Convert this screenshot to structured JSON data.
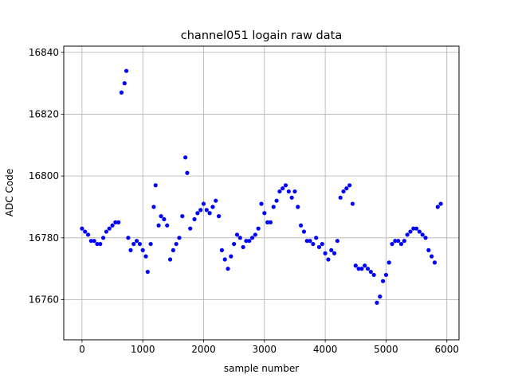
{
  "chart_data": {
    "type": "scatter",
    "title": "channel051 logain raw data",
    "xlabel": "sample number",
    "ylabel": "ADC Code",
    "xlim": [
      -300,
      6200
    ],
    "ylim": [
      16747,
      16842
    ],
    "x_ticks": [
      0,
      1000,
      2000,
      3000,
      4000,
      5000,
      6000
    ],
    "y_ticks": [
      16760,
      16780,
      16800,
      16820,
      16840
    ],
    "grid": true,
    "marker_color": "#0000ff",
    "series": [
      {
        "points": [
          [
            0,
            16783
          ],
          [
            50,
            16782
          ],
          [
            100,
            16781
          ],
          [
            150,
            16779
          ],
          [
            200,
            16779
          ],
          [
            250,
            16778
          ],
          [
            300,
            16778
          ],
          [
            350,
            16780
          ],
          [
            400,
            16782
          ],
          [
            450,
            16783
          ],
          [
            500,
            16784
          ],
          [
            550,
            16785
          ],
          [
            600,
            16785
          ],
          [
            650,
            16827
          ],
          [
            700,
            16830
          ],
          [
            730,
            16834
          ],
          [
            760,
            16780
          ],
          [
            800,
            16776
          ],
          [
            850,
            16778
          ],
          [
            900,
            16779
          ],
          [
            950,
            16778
          ],
          [
            1000,
            16776
          ],
          [
            1050,
            16774
          ],
          [
            1080,
            16769
          ],
          [
            1130,
            16778
          ],
          [
            1180,
            16790
          ],
          [
            1210,
            16797
          ],
          [
            1260,
            16784
          ],
          [
            1300,
            16787
          ],
          [
            1350,
            16786
          ],
          [
            1400,
            16784
          ],
          [
            1450,
            16773
          ],
          [
            1500,
            16776
          ],
          [
            1550,
            16778
          ],
          [
            1600,
            16780
          ],
          [
            1650,
            16787
          ],
          [
            1700,
            16806
          ],
          [
            1730,
            16801
          ],
          [
            1780,
            16783
          ],
          [
            1850,
            16786
          ],
          [
            1900,
            16788
          ],
          [
            1950,
            16789
          ],
          [
            2000,
            16791
          ],
          [
            2050,
            16789
          ],
          [
            2100,
            16788
          ],
          [
            2150,
            16790
          ],
          [
            2200,
            16792
          ],
          [
            2250,
            16787
          ],
          [
            2300,
            16776
          ],
          [
            2350,
            16773
          ],
          [
            2400,
            16770
          ],
          [
            2450,
            16774
          ],
          [
            2500,
            16778
          ],
          [
            2550,
            16781
          ],
          [
            2600,
            16780
          ],
          [
            2650,
            16777
          ],
          [
            2700,
            16779
          ],
          [
            2750,
            16779
          ],
          [
            2800,
            16780
          ],
          [
            2850,
            16781
          ],
          [
            2900,
            16783
          ],
          [
            2950,
            16791
          ],
          [
            3000,
            16788
          ],
          [
            3050,
            16785
          ],
          [
            3100,
            16785
          ],
          [
            3150,
            16790
          ],
          [
            3200,
            16792
          ],
          [
            3250,
            16795
          ],
          [
            3300,
            16796
          ],
          [
            3350,
            16797
          ],
          [
            3400,
            16795
          ],
          [
            3450,
            16793
          ],
          [
            3500,
            16795
          ],
          [
            3550,
            16790
          ],
          [
            3600,
            16784
          ],
          [
            3650,
            16782
          ],
          [
            3700,
            16779
          ],
          [
            3750,
            16779
          ],
          [
            3800,
            16778
          ],
          [
            3850,
            16780
          ],
          [
            3900,
            16777
          ],
          [
            3950,
            16778
          ],
          [
            4000,
            16775
          ],
          [
            4050,
            16773
          ],
          [
            4100,
            16776
          ],
          [
            4150,
            16775
          ],
          [
            4200,
            16779
          ],
          [
            4250,
            16793
          ],
          [
            4300,
            16795
          ],
          [
            4350,
            16796
          ],
          [
            4400,
            16797
          ],
          [
            4450,
            16791
          ],
          [
            4500,
            16771
          ],
          [
            4550,
            16770
          ],
          [
            4600,
            16770
          ],
          [
            4650,
            16771
          ],
          [
            4700,
            16770
          ],
          [
            4750,
            16769
          ],
          [
            4800,
            16768
          ],
          [
            4850,
            16759
          ],
          [
            4900,
            16761
          ],
          [
            4950,
            16766
          ],
          [
            5000,
            16768
          ],
          [
            5050,
            16772
          ],
          [
            5100,
            16778
          ],
          [
            5150,
            16779
          ],
          [
            5200,
            16779
          ],
          [
            5250,
            16778
          ],
          [
            5300,
            16779
          ],
          [
            5350,
            16781
          ],
          [
            5400,
            16782
          ],
          [
            5450,
            16783
          ],
          [
            5500,
            16783
          ],
          [
            5550,
            16782
          ],
          [
            5600,
            16781
          ],
          [
            5650,
            16780
          ],
          [
            5700,
            16776
          ],
          [
            5750,
            16774
          ],
          [
            5800,
            16772
          ],
          [
            5850,
            16790
          ],
          [
            5900,
            16791
          ]
        ]
      }
    ]
  }
}
